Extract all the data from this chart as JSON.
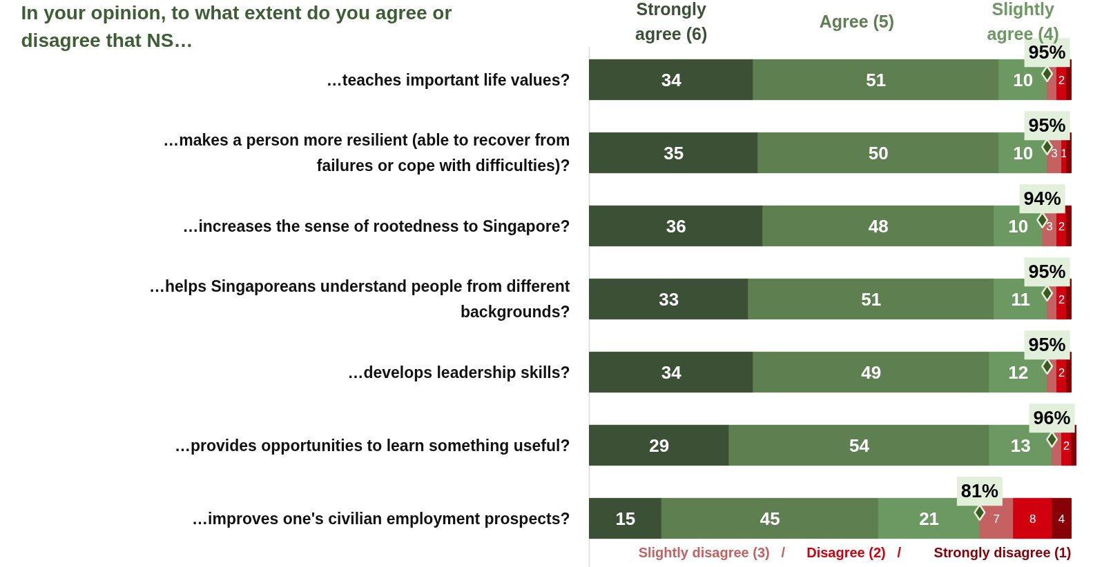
{
  "chart_data": {
    "type": "bar",
    "orientation": "horizontal",
    "stacked": true,
    "legend": "top",
    "grid": false,
    "tick_labels": false,
    "title": "In your opinion, to what extent do you agree or disagree that NS…",
    "annotations": [
      "/",
      "/"
    ],
    "categories": [
      "…teaches important life values?",
      "…makes a person more resilient (able to recover from failures or cope with difficulties)?",
      "…increases the sense of rootedness to Singapore?",
      "…helps Singaporeans understand people from different backgrounds?",
      "…develops leadership skills?",
      "…provides opportunities to learn something useful?",
      "…improves one's civilian employment prospects?"
    ],
    "series": [
      {
        "name": "Strongly agree (6)",
        "color": "#3b5034",
        "values": [
          34,
          35,
          36,
          33,
          34,
          29,
          15
        ],
        "value_labels": [
          "34",
          "35",
          "36",
          "33",
          "34",
          "29",
          "15"
        ]
      },
      {
        "name": "Agree (5)",
        "color": "#5e7f50",
        "values": [
          51,
          50,
          48,
          51,
          49,
          54,
          45
        ],
        "value_labels": [
          "51",
          "50",
          "48",
          "51",
          "49",
          "54",
          "45"
        ]
      },
      {
        "name": "Slightly agree (4)",
        "color": "#6c9962",
        "values": [
          10,
          10,
          10,
          11,
          12,
          13,
          21
        ],
        "value_labels": [
          "10",
          "10",
          "10",
          "11",
          "12",
          "13",
          "21"
        ]
      },
      {
        "name": "Slightly disagree (3)",
        "color": "#c46262",
        "values": [
          2,
          3,
          3,
          2,
          2,
          2,
          7
        ],
        "value_labels": [
          null,
          "3",
          "3",
          null,
          null,
          null,
          "7"
        ]
      },
      {
        "name": "Disagree (2)",
        "color": "#d0000f",
        "values": [
          2,
          1,
          2,
          2,
          2,
          2,
          8
        ],
        "value_labels": [
          "2",
          "1",
          "2",
          "2",
          "2",
          "2",
          "8"
        ]
      },
      {
        "name": "Strongly disagree (1)",
        "color": "#870007",
        "values": [
          1,
          1,
          1,
          1,
          1,
          1,
          4
        ],
        "value_labels": [
          null,
          null,
          null,
          null,
          null,
          null,
          "4"
        ]
      },
      {
        "type": "scatter",
        "marker": "diamond",
        "color": "#3a5a22",
        "values": [
          95,
          95,
          94,
          95,
          95,
          96,
          81
        ],
        "value_labels": [
          "95%",
          "95%",
          "94%",
          "95%",
          "95%",
          "96%",
          "81%"
        ]
      }
    ]
  }
}
